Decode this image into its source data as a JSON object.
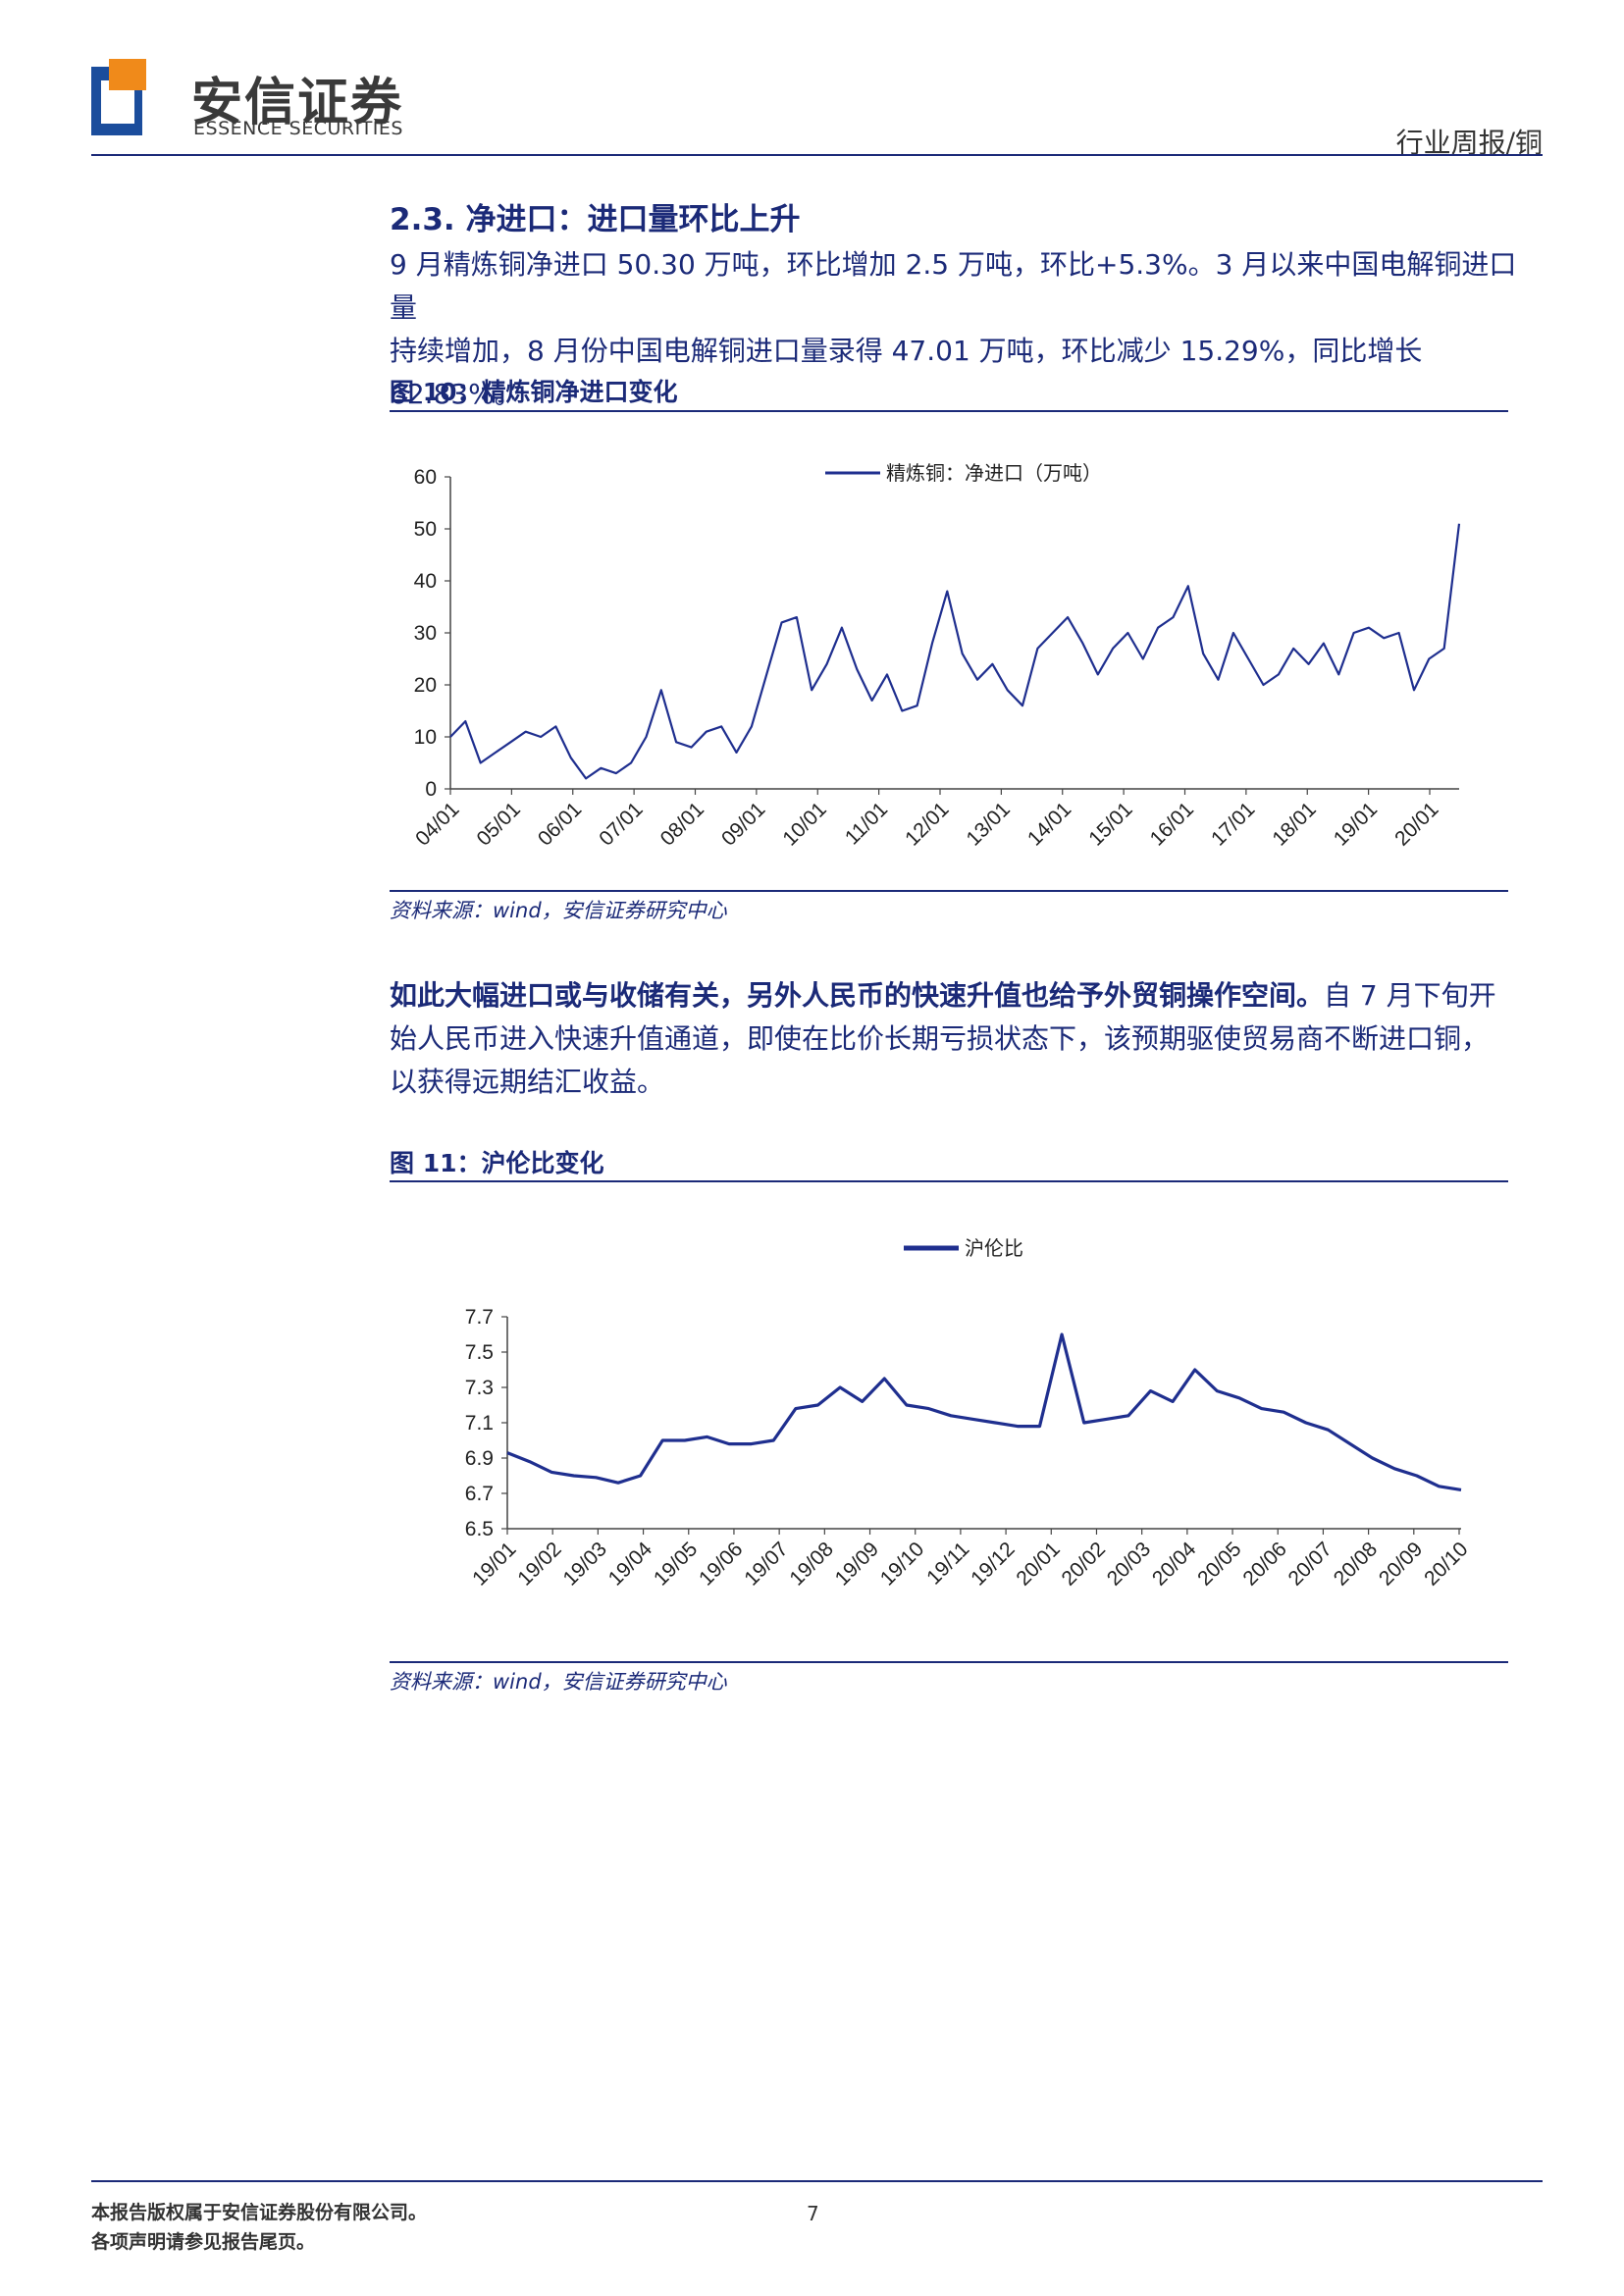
{
  "header": {
    "logo_cn": "安信证券",
    "logo_en": "ESSENCE SECURITIES",
    "report_tag": "行业周报/铜"
  },
  "section": {
    "title": "2.3. 净进口：进口量环比上升",
    "paragraph1_line1": "9 月精炼铜净进口 50.30 万吨，环比增加 2.5 万吨，环比+5.3%。3 月以来中国电解铜进口量",
    "paragraph1_line2": "持续增加，8 月份中国电解铜进口量录得 47.01 万吨，环比减少 15.29%，同比增长 62.83%。",
    "paragraph2_bold": "如此大幅进口或与收储有关，另外人民币的快速升值也给予外贸铜操作空间。",
    "paragraph2_rest1": "自 7 月下旬开",
    "paragraph2_line2": "始人民币进入快速升值通道，即使在比价长期亏损状态下，该预期驱使贸易商不断进口铜，",
    "paragraph2_line3": "以获得远期结汇收益。"
  },
  "figure10": {
    "title": "图 10：精炼铜净进口变化",
    "source": "资料来源：wind，安信证券研究中心"
  },
  "figure11": {
    "title": "图 11：沪伦比变化",
    "source": "资料来源：wind，安信证券研究中心"
  },
  "footer": {
    "copyright_line1": "本报告版权属于安信证券股份有限公司。",
    "copyright_line2": "各项声明请参见报告尾页。",
    "page_number": "7"
  },
  "chart_data": [
    {
      "type": "line",
      "series": [
        {
          "name": "精炼铜：净进口（万吨）",
          "color": "#1f2f8f",
          "x": [
            "04/01",
            "04/04",
            "04/07",
            "04/10",
            "05/01",
            "05/04",
            "05/07",
            "05/10",
            "06/01",
            "06/04",
            "06/07",
            "06/10",
            "07/01",
            "07/04",
            "07/07",
            "07/10",
            "08/01",
            "08/04",
            "08/07",
            "08/10",
            "09/01",
            "09/04",
            "09/07",
            "09/10",
            "10/01",
            "10/04",
            "10/07",
            "10/10",
            "11/01",
            "11/04",
            "11/07",
            "11/10",
            "12/01",
            "12/04",
            "12/07",
            "12/10",
            "13/01",
            "13/04",
            "13/07",
            "13/10",
            "14/01",
            "14/04",
            "14/07",
            "14/10",
            "15/01",
            "15/04",
            "15/07",
            "15/10",
            "16/01",
            "16/04",
            "16/07",
            "16/10",
            "17/01",
            "17/04",
            "17/07",
            "17/10",
            "18/01",
            "18/04",
            "18/07",
            "18/10",
            "19/01",
            "19/04",
            "19/07",
            "19/10",
            "20/01",
            "20/04",
            "20/07",
            "20/09"
          ],
          "values": [
            10,
            13,
            5,
            7,
            9,
            11,
            10,
            12,
            6,
            2,
            4,
            3,
            5,
            10,
            19,
            9,
            8,
            11,
            12,
            7,
            12,
            22,
            32,
            33,
            19,
            24,
            31,
            23,
            17,
            22,
            15,
            16,
            28,
            38,
            26,
            21,
            24,
            19,
            16,
            27,
            30,
            33,
            28,
            22,
            27,
            30,
            25,
            31,
            33,
            39,
            26,
            21,
            30,
            25,
            20,
            22,
            27,
            24,
            28,
            22,
            30,
            31,
            29,
            30,
            19,
            25,
            27,
            51
          ]
        }
      ],
      "ylim": [
        0,
        60
      ],
      "yticks": [
        0,
        10,
        20,
        30,
        40,
        50,
        60
      ],
      "xtick_labels": [
        "04/01",
        "05/01",
        "06/01",
        "07/01",
        "08/01",
        "09/01",
        "10/01",
        "11/01",
        "12/01",
        "13/01",
        "14/01",
        "15/01",
        "16/01",
        "17/01",
        "18/01",
        "19/01",
        "20/01"
      ],
      "legend": "top-center"
    },
    {
      "type": "line",
      "series": [
        {
          "name": "沪伦比",
          "color": "#1f2f8f",
          "x": [
            "19/01",
            "19/01b",
            "19/02",
            "19/02b",
            "19/03",
            "19/03b",
            "19/04",
            "19/04b",
            "19/05",
            "19/05b",
            "19/06",
            "19/06b",
            "19/07",
            "19/07b",
            "19/08",
            "19/08b",
            "19/09",
            "19/09b",
            "19/10",
            "19/10b",
            "19/11",
            "19/11b",
            "19/12",
            "19/12b",
            "20/01",
            "20/01b",
            "20/02",
            "20/02b",
            "20/03",
            "20/03b",
            "20/04",
            "20/04b",
            "20/05",
            "20/05b",
            "20/06",
            "20/06b",
            "20/07",
            "20/07b",
            "20/08",
            "20/08b",
            "20/09",
            "20/09b",
            "20/10",
            "20/10b"
          ],
          "values": [
            6.93,
            6.88,
            6.82,
            6.8,
            6.79,
            6.76,
            6.8,
            7.0,
            7.0,
            7.02,
            6.98,
            6.98,
            7.0,
            7.18,
            7.2,
            7.3,
            7.22,
            7.35,
            7.2,
            7.18,
            7.14,
            7.12,
            7.1,
            7.08,
            7.08,
            7.6,
            7.1,
            7.12,
            7.14,
            7.28,
            7.22,
            7.4,
            7.28,
            7.24,
            7.18,
            7.16,
            7.1,
            7.06,
            6.98,
            6.9,
            6.84,
            6.8,
            6.74,
            6.72
          ]
        }
      ],
      "ylim": [
        6.5,
        7.7
      ],
      "yticks": [
        6.5,
        6.7,
        6.9,
        7.1,
        7.3,
        7.5,
        7.7
      ],
      "xtick_labels": [
        "19/01",
        "19/02",
        "19/03",
        "19/04",
        "19/05",
        "19/06",
        "19/07",
        "19/08",
        "19/09",
        "19/10",
        "19/11",
        "19/12",
        "20/01",
        "20/02",
        "20/03",
        "20/04",
        "20/05",
        "20/06",
        "20/07",
        "20/08",
        "20/09",
        "20/10"
      ],
      "legend": "top-center"
    }
  ]
}
